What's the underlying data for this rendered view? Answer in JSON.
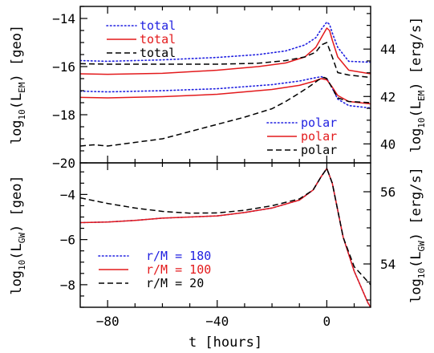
{
  "colors": {
    "blue": "#1f1fe0",
    "red": "#e31a1c",
    "black": "#000000"
  },
  "xlabel": "t [hours]",
  "chart_data": [
    {
      "type": "line",
      "panel": "top",
      "xlim": [
        -90,
        16
      ],
      "ylim_left": [
        -20,
        -13.5
      ],
      "ylim_right": [
        39.2,
        45.8
      ],
      "xticks": [
        -80,
        -40,
        0
      ],
      "yticks_left": [
        -14,
        -16,
        -18,
        -20
      ],
      "yticks_right": [
        40,
        42,
        44
      ],
      "ylabel_left": {
        "pre": "log",
        "sub1": "10",
        "mid": "(L",
        "sub2": "EM",
        "post": ") [geo]"
      },
      "ylabel_right": {
        "pre": "log",
        "sub1": "10",
        "mid": "(L",
        "sub2": "EM",
        "post": ") [erg/s]"
      },
      "legend_top": {
        "placement": "top-left",
        "entries": [
          {
            "label": "total",
            "color": "#1f1fe0",
            "style": "dotted"
          },
          {
            "label": "total",
            "color": "#e31a1c",
            "style": "solid"
          },
          {
            "label": "total",
            "color": "#000000",
            "style": "dashed"
          }
        ]
      },
      "legend_bottom": {
        "placement": "bottom-right",
        "entries": [
          {
            "label": "polar",
            "color": "#1f1fe0",
            "style": "dotted"
          },
          {
            "label": "polar",
            "color": "#e31a1c",
            "style": "solid"
          },
          {
            "label": "polar",
            "color": "#000000",
            "style": "dashed"
          }
        ]
      },
      "series": [
        {
          "color": "#1f1fe0",
          "style": "dotted",
          "x": [
            -90,
            -80,
            -60,
            -40,
            -25,
            -15,
            -8,
            -4,
            -2,
            0,
            1,
            2,
            4,
            8,
            16
          ],
          "y": [
            -15.75,
            -15.78,
            -15.72,
            -15.62,
            -15.5,
            -15.35,
            -15.1,
            -14.8,
            -14.45,
            -14.15,
            -14.25,
            -14.6,
            -15.2,
            -15.78,
            -15.82
          ]
        },
        {
          "color": "#e31a1c",
          "style": "solid",
          "x": [
            -90,
            -80,
            -60,
            -40,
            -25,
            -15,
            -8,
            -4,
            -2,
            0,
            1,
            2,
            4,
            8,
            16
          ],
          "y": [
            -16.3,
            -16.32,
            -16.28,
            -16.15,
            -16.0,
            -15.85,
            -15.6,
            -15.2,
            -14.8,
            -14.4,
            -14.5,
            -14.9,
            -15.6,
            -16.15,
            -16.3
          ]
        },
        {
          "color": "#000000",
          "style": "dashed",
          "x": [
            -90,
            -80,
            -60,
            -40,
            -25,
            -15,
            -8,
            -4,
            -2,
            0,
            2,
            4,
            8,
            16
          ],
          "y": [
            -15.88,
            -15.9,
            -15.9,
            -15.9,
            -15.86,
            -15.75,
            -15.6,
            -15.4,
            -15.1,
            -15.0,
            -15.6,
            -16.25,
            -16.35,
            -16.45
          ]
        },
        {
          "color": "#1f1fe0",
          "style": "dotted",
          "x": [
            -90,
            -80,
            -60,
            -40,
            -20,
            -10,
            -5,
            -2,
            0,
            2,
            4,
            8,
            16
          ],
          "y": [
            -17.02,
            -17.05,
            -17.0,
            -16.92,
            -16.75,
            -16.6,
            -16.48,
            -16.42,
            -16.5,
            -16.9,
            -17.35,
            -17.62,
            -17.72
          ]
        },
        {
          "color": "#e31a1c",
          "style": "solid",
          "x": [
            -90,
            -80,
            -60,
            -40,
            -20,
            -10,
            -5,
            -2,
            0,
            2,
            4,
            8,
            16
          ],
          "y": [
            -17.28,
            -17.3,
            -17.25,
            -17.15,
            -16.95,
            -16.78,
            -16.62,
            -16.5,
            -16.55,
            -16.85,
            -17.2,
            -17.45,
            -17.55
          ]
        },
        {
          "color": "#000000",
          "style": "dashed",
          "x": [
            -90,
            -85,
            -80,
            -70,
            -60,
            -50,
            -40,
            -30,
            -20,
            -15,
            -10,
            -6,
            -3,
            -1,
            0,
            2,
            4,
            8,
            16
          ],
          "y": [
            -19.3,
            -19.25,
            -19.3,
            -19.15,
            -19.0,
            -18.7,
            -18.4,
            -18.1,
            -17.75,
            -17.45,
            -17.1,
            -16.8,
            -16.55,
            -16.45,
            -16.5,
            -16.9,
            -17.3,
            -17.45,
            -17.5
          ]
        }
      ]
    },
    {
      "type": "line",
      "panel": "bottom",
      "xlim": [
        -90,
        16
      ],
      "ylim_left": [
        -9,
        -2.6
      ],
      "ylim_right": [
        52.8,
        56.8
      ],
      "xticks": [
        -80,
        -40,
        0
      ],
      "yticks_left": [
        -4,
        -6,
        -8
      ],
      "yticks_right": [
        54,
        56
      ],
      "ylabel_left": {
        "pre": "log",
        "sub1": "10",
        "mid": "(L",
        "sub2": "GW",
        "post": ") [geo]"
      },
      "ylabel_right": {
        "pre": "log",
        "sub1": "10",
        "mid": "(L",
        "sub2": "GW",
        "post": ") [erg/s]"
      },
      "legend": {
        "placement": "bottom-left",
        "entries": [
          {
            "label": "r/M = 180",
            "color": "#1f1fe0",
            "style": "dotted"
          },
          {
            "label": "r/M = 100",
            "color": "#e31a1c",
            "style": "solid"
          },
          {
            "label": "r/M = 20",
            "color": "#000000",
            "style": "dashed"
          }
        ]
      },
      "series": [
        {
          "color": "#1f1fe0",
          "style": "dotted",
          "x": [
            -90,
            -80,
            -70,
            -60,
            -50,
            -40,
            -30,
            -20,
            -10,
            -5,
            -2,
            0,
            2,
            4,
            6,
            10,
            15,
            16
          ],
          "y": [
            -5.25,
            -5.22,
            -5.15,
            -5.05,
            -5.0,
            -4.95,
            -4.8,
            -4.6,
            -4.25,
            -3.8,
            -3.2,
            -2.85,
            -3.5,
            -4.7,
            -5.9,
            -7.4,
            -8.8,
            -9.0
          ]
        },
        {
          "color": "#e31a1c",
          "style": "solid",
          "x": [
            -90,
            -80,
            -70,
            -60,
            -50,
            -40,
            -30,
            -20,
            -10,
            -5,
            -2,
            0,
            2,
            4,
            6,
            10,
            15,
            16
          ],
          "y": [
            -5.25,
            -5.22,
            -5.15,
            -5.05,
            -5.0,
            -4.95,
            -4.8,
            -4.6,
            -4.25,
            -3.8,
            -3.2,
            -2.85,
            -3.5,
            -4.7,
            -5.9,
            -7.4,
            -8.8,
            -9.0
          ]
        },
        {
          "color": "#000000",
          "style": "dashed",
          "x": [
            -90,
            -80,
            -70,
            -60,
            -50,
            -40,
            -30,
            -20,
            -10,
            -5,
            -2,
            0,
            2,
            4,
            6,
            10,
            16
          ],
          "y": [
            -4.15,
            -4.4,
            -4.6,
            -4.75,
            -4.83,
            -4.82,
            -4.7,
            -4.5,
            -4.2,
            -3.8,
            -3.2,
            -2.85,
            -3.5,
            -4.7,
            -5.9,
            -7.2,
            -8.0
          ]
        }
      ]
    }
  ]
}
